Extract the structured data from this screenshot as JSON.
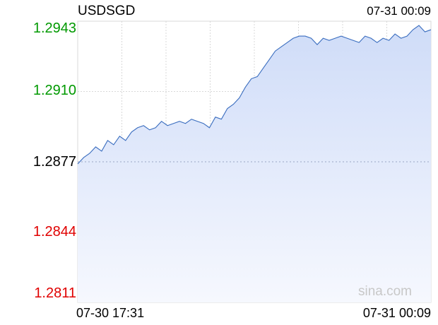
{
  "header": {
    "symbol": "USDSGD",
    "timestamp": "07-31 00:09"
  },
  "watermark": "sina.com",
  "colors": {
    "line": "#3a6dbf",
    "fill_top": "#cfdcf8",
    "fill_bottom": "#f6f8fe",
    "up": "#009900",
    "down": "#e00000",
    "neutral": "#000000",
    "grid": "#d8d8d8",
    "watermark": "#c8c8c8"
  },
  "chart_data": {
    "type": "area",
    "ylim": [
      1.2811,
      1.2943
    ],
    "baseline": 1.2877,
    "y_ticks": [
      "1.2943",
      "1.2910",
      "1.2877",
      "1.2844",
      "1.2811"
    ],
    "x_ticks": [
      "07-30 17:31",
      "07-31 00:09"
    ],
    "grid": true,
    "series": [
      {
        "values": [
          1.2876,
          1.2879,
          1.2881,
          1.2884,
          1.2882,
          1.2887,
          1.2885,
          1.2889,
          1.2887,
          1.2891,
          1.2893,
          1.2894,
          1.2892,
          1.2893,
          1.2896,
          1.2894,
          1.2895,
          1.2896,
          1.2895,
          1.2897,
          1.2896,
          1.2895,
          1.2893,
          1.2898,
          1.2897,
          1.2902,
          1.2904,
          1.2907,
          1.2912,
          1.2916,
          1.2917,
          1.2921,
          1.2925,
          1.2929,
          1.2931,
          1.2933,
          1.2935,
          1.2936,
          1.2936,
          1.2935,
          1.2932,
          1.2935,
          1.2934,
          1.2935,
          1.2936,
          1.2935,
          1.2934,
          1.2933,
          1.2936,
          1.2935,
          1.2933,
          1.2935,
          1.2934,
          1.2937,
          1.2935,
          1.2936,
          1.2939,
          1.2941,
          1.2938,
          1.2939
        ]
      }
    ]
  }
}
